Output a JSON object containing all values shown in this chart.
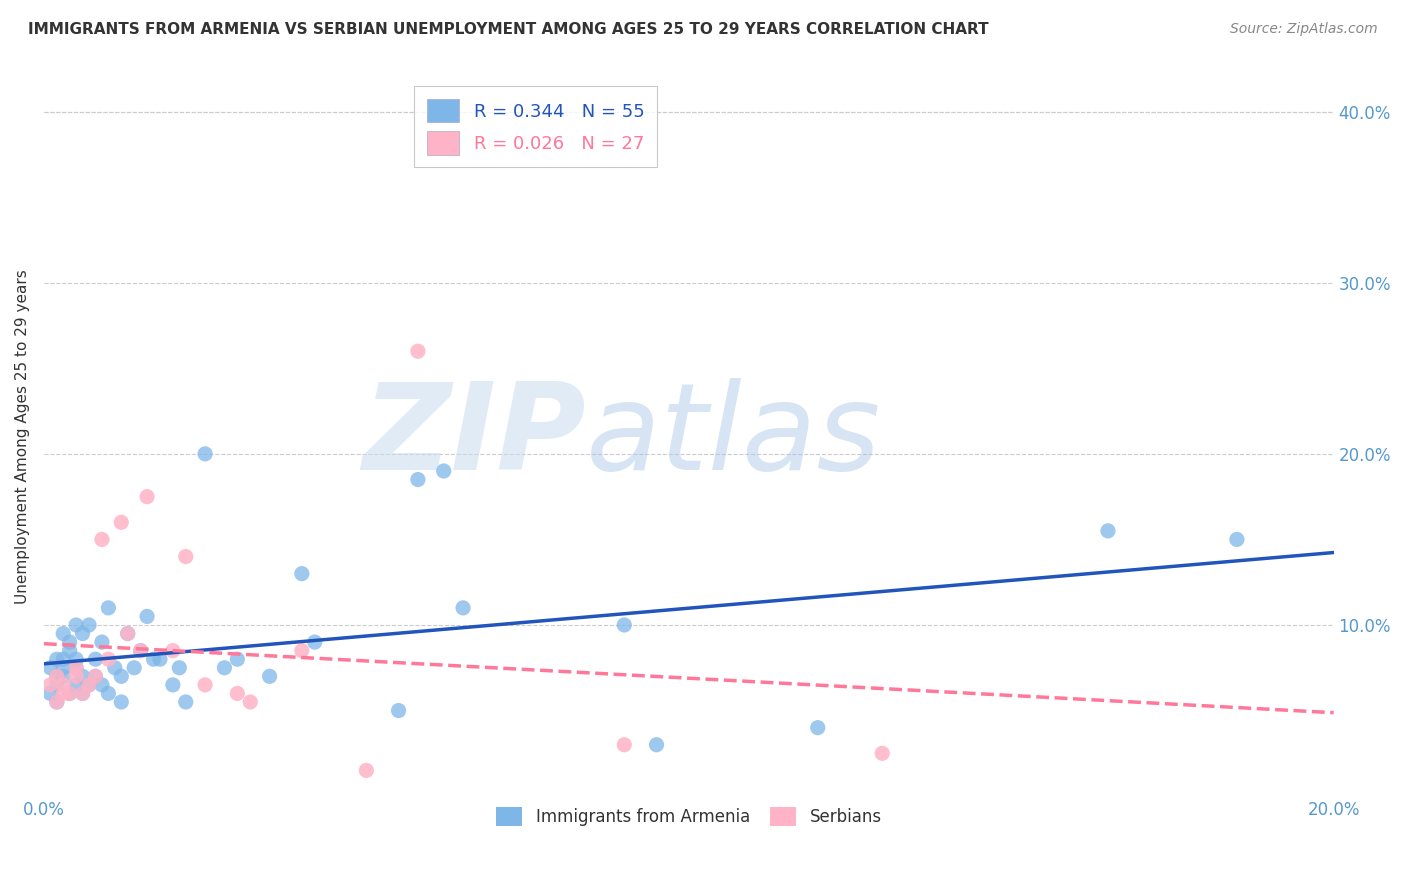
{
  "title": "IMMIGRANTS FROM ARMENIA VS SERBIAN UNEMPLOYMENT AMONG AGES 25 TO 29 YEARS CORRELATION CHART",
  "source": "Source: ZipAtlas.com",
  "ylabel": "Unemployment Among Ages 25 to 29 years",
  "xlim": [
    0.0,
    0.2
  ],
  "ylim": [
    0.0,
    0.42
  ],
  "color_armenia": "#7EB6E8",
  "color_serbian": "#FFB3C6",
  "trend_color_armenia": "#2255BB",
  "trend_color_serbian": "#FF7799",
  "legend_R_armenia": "R = 0.344",
  "legend_N_armenia": "N = 55",
  "legend_R_serbian": "R = 0.026",
  "legend_N_serbian": "N = 27",
  "background_color": "#FFFFFF",
  "grid_color": "#CCCCCC",
  "title_color": "#333333",
  "axis_label_color": "#5599CC",
  "armenia_x": [
    0.001,
    0.001,
    0.002,
    0.002,
    0.002,
    0.002,
    0.003,
    0.003,
    0.003,
    0.003,
    0.004,
    0.004,
    0.004,
    0.005,
    0.005,
    0.005,
    0.005,
    0.006,
    0.006,
    0.006,
    0.007,
    0.007,
    0.008,
    0.008,
    0.009,
    0.009,
    0.01,
    0.01,
    0.011,
    0.012,
    0.012,
    0.013,
    0.014,
    0.015,
    0.016,
    0.017,
    0.018,
    0.02,
    0.021,
    0.022,
    0.025,
    0.028,
    0.03,
    0.035,
    0.04,
    0.042,
    0.055,
    0.058,
    0.062,
    0.065,
    0.09,
    0.095,
    0.12,
    0.165,
    0.185
  ],
  "armenia_y": [
    0.075,
    0.06,
    0.065,
    0.07,
    0.08,
    0.055,
    0.07,
    0.075,
    0.08,
    0.095,
    0.06,
    0.085,
    0.09,
    0.065,
    0.075,
    0.08,
    0.1,
    0.06,
    0.07,
    0.095,
    0.065,
    0.1,
    0.07,
    0.08,
    0.065,
    0.09,
    0.06,
    0.11,
    0.075,
    0.055,
    0.07,
    0.095,
    0.075,
    0.085,
    0.105,
    0.08,
    0.08,
    0.065,
    0.075,
    0.055,
    0.2,
    0.075,
    0.08,
    0.07,
    0.13,
    0.09,
    0.05,
    0.185,
    0.19,
    0.11,
    0.1,
    0.03,
    0.04,
    0.155,
    0.15
  ],
  "serbian_x": [
    0.001,
    0.002,
    0.002,
    0.003,
    0.003,
    0.004,
    0.005,
    0.005,
    0.006,
    0.007,
    0.008,
    0.009,
    0.01,
    0.012,
    0.013,
    0.015,
    0.016,
    0.02,
    0.022,
    0.025,
    0.03,
    0.032,
    0.04,
    0.05,
    0.058,
    0.09,
    0.13
  ],
  "serbian_y": [
    0.065,
    0.055,
    0.07,
    0.06,
    0.065,
    0.06,
    0.07,
    0.075,
    0.06,
    0.065,
    0.07,
    0.15,
    0.08,
    0.16,
    0.095,
    0.085,
    0.175,
    0.085,
    0.14,
    0.065,
    0.06,
    0.055,
    0.085,
    0.015,
    0.26,
    0.03,
    0.025
  ]
}
